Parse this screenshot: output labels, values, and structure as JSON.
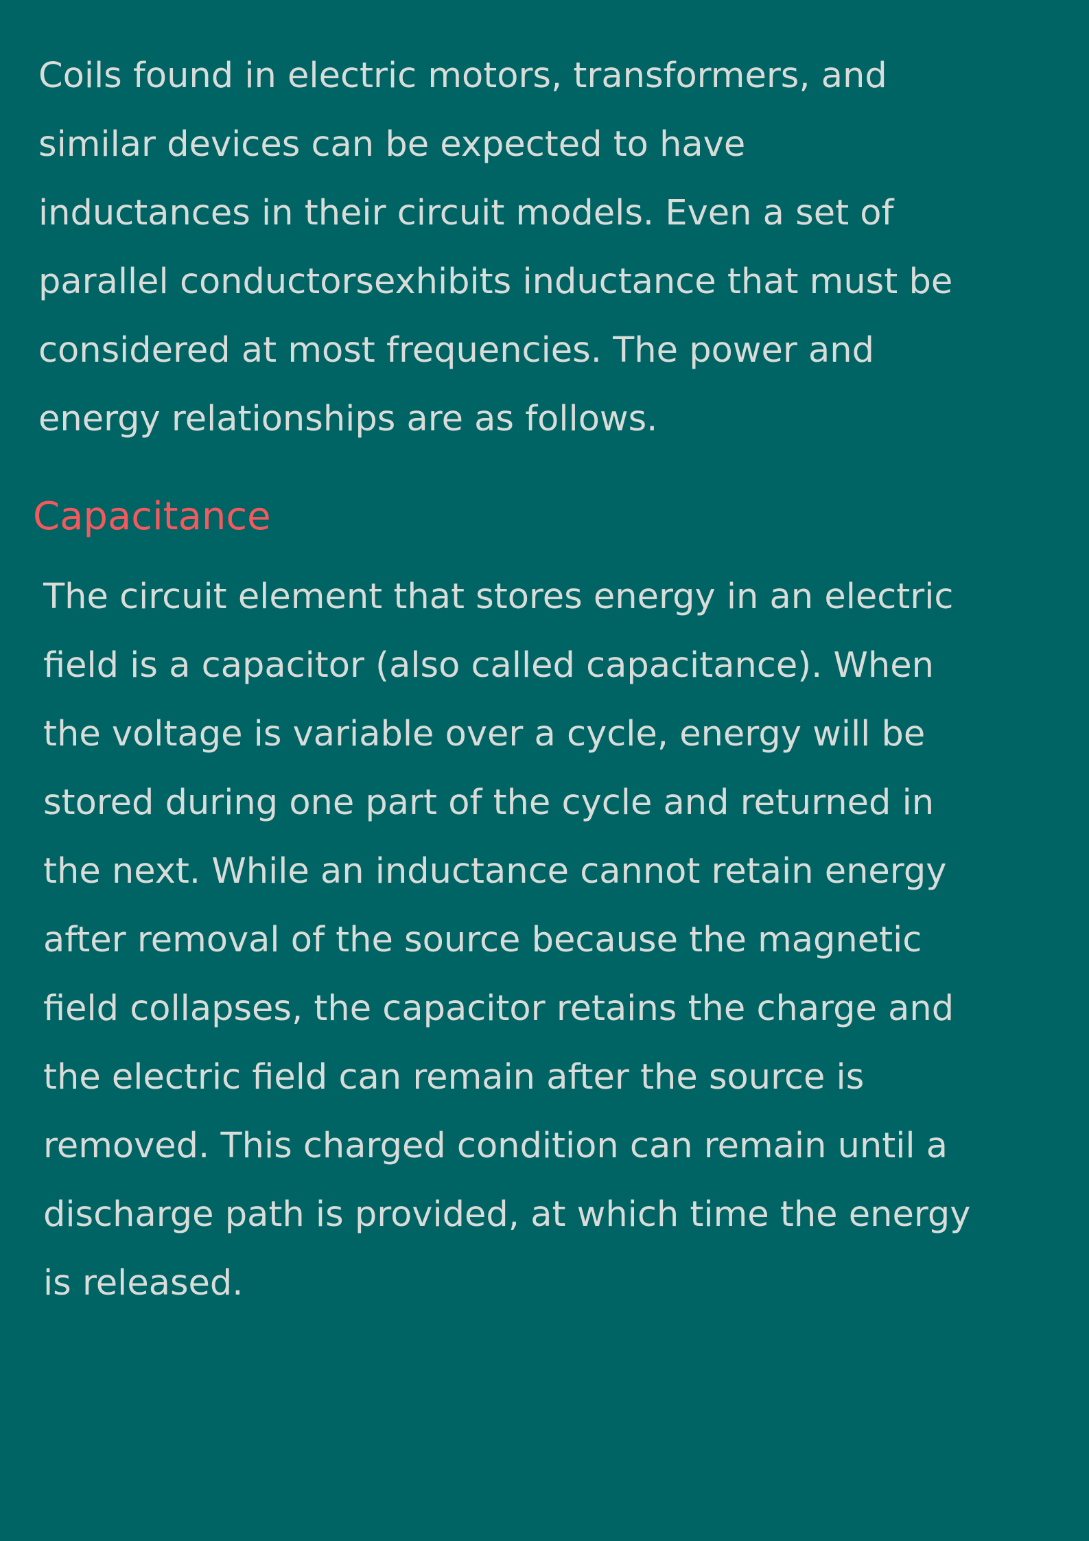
{
  "document": {
    "intro": {
      "lines": [
        "Coils found in electric motors, transformers, and",
        "similar devices can be expected to have",
        "inductances in their circuit models. Even a set of",
        "parallel conductorsexhibits inductance that must be",
        "considered at most frequencies. The power and",
        "energy relationships are as follows."
      ]
    },
    "section": {
      "heading": "Capacitance",
      "lines": [
        "The circuit element that stores energy in an electric",
        "field is a capacitor (also called capacitance). When",
        "the voltage is variable over a cycle, energy will be",
        "stored during one part of the cycle and returned in",
        "the next. While an inductance cannot retain energy",
        "after removal of the source because the magnetic",
        "field collapses, the capacitor retains the charge and",
        "the electric field can remain after the source is",
        "removed. This charged condition can remain until a",
        "discharge path is provided, at which time the energy",
        "is released."
      ]
    },
    "colors": {
      "background": "#006364",
      "body_text": "#d9dcd9",
      "heading": "#f45a5d"
    }
  }
}
